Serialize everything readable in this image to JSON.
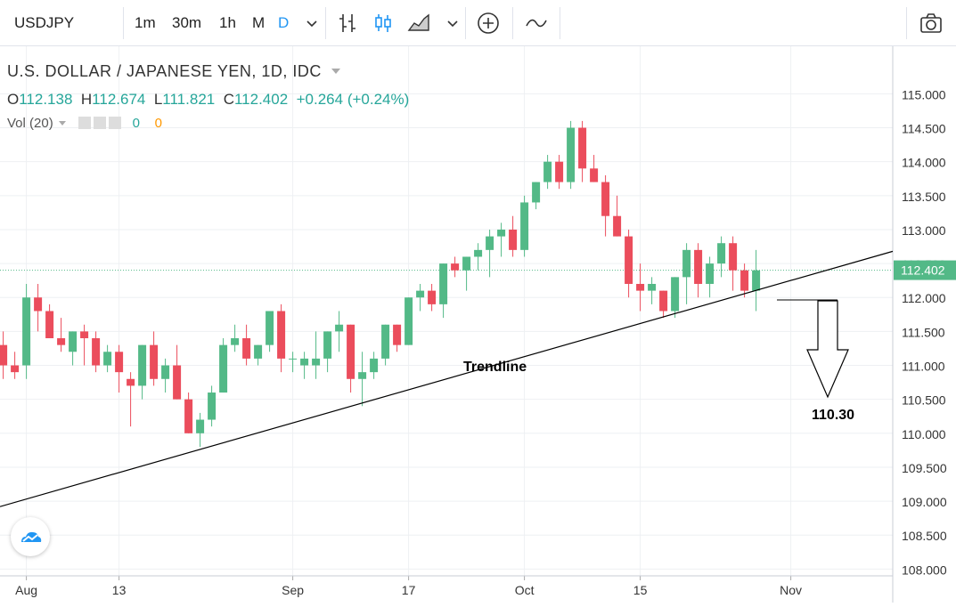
{
  "toolbar": {
    "symbol": "USDJPY",
    "timeframes": [
      "1m",
      "30m",
      "1h",
      "M",
      "D"
    ],
    "active_timeframe": "D"
  },
  "legend": {
    "title": "U.S. DOLLAR / JAPANESE YEN, 1D, IDC",
    "o_label": "O",
    "o_value": "112.138",
    "h_label": "H",
    "h_value": "112.674",
    "l_label": "L",
    "l_value": "111.821",
    "c_label": "C",
    "c_value": "112.402",
    "change": "+0.264 (+0.24%)",
    "vol_label": "Vol (20)",
    "vol_value1": "0",
    "vol_value2": "0"
  },
  "chart_data": {
    "type": "candlestick",
    "y_ticks": [
      "115.000",
      "114.500",
      "114.000",
      "113.500",
      "113.000",
      "112.500",
      "112.000",
      "111.500",
      "111.000",
      "110.500",
      "110.000",
      "109.500",
      "109.000",
      "108.500",
      "108.000"
    ],
    "x_ticks": [
      {
        "label": "Aug",
        "index": 2
      },
      {
        "label": "13",
        "index": 10
      },
      {
        "label": "Sep",
        "index": 25
      },
      {
        "label": "17",
        "index": 35
      },
      {
        "label": "Oct",
        "index": 45
      },
      {
        "label": "15",
        "index": 55
      },
      {
        "label": "Nov",
        "index": 68
      }
    ],
    "ylim": [
      107.9,
      115.7
    ],
    "last_price": 112.402,
    "last_price_label": "112.402",
    "up_color": "#53b987",
    "down_color": "#eb4d5c",
    "candles": [
      [
        111.3,
        111.5,
        110.8,
        111.0
      ],
      [
        111.0,
        111.2,
        110.8,
        110.9
      ],
      [
        111.0,
        112.2,
        110.8,
        112.0
      ],
      [
        112.0,
        112.2,
        111.5,
        111.8
      ],
      [
        111.8,
        111.9,
        111.4,
        111.4
      ],
      [
        111.4,
        111.7,
        111.2,
        111.3
      ],
      [
        111.2,
        111.5,
        111.0,
        111.5
      ],
      [
        111.5,
        111.6,
        111.0,
        111.4
      ],
      [
        111.4,
        111.5,
        110.9,
        111.0
      ],
      [
        111.0,
        111.3,
        110.9,
        111.2
      ],
      [
        111.2,
        111.3,
        110.6,
        110.9
      ],
      [
        110.8,
        110.9,
        110.1,
        110.7
      ],
      [
        110.7,
        111.3,
        110.5,
        111.3
      ],
      [
        111.3,
        111.5,
        110.7,
        110.8
      ],
      [
        110.8,
        111.1,
        110.6,
        111.0
      ],
      [
        111.0,
        111.3,
        110.5,
        110.5
      ],
      [
        110.5,
        110.6,
        110.0,
        110.0
      ],
      [
        110.0,
        110.3,
        109.8,
        110.2
      ],
      [
        110.2,
        110.7,
        110.1,
        110.6
      ],
      [
        110.6,
        111.4,
        110.6,
        111.3
      ],
      [
        111.3,
        111.6,
        111.2,
        111.4
      ],
      [
        111.4,
        111.6,
        111.0,
        111.1
      ],
      [
        111.1,
        111.3,
        111.0,
        111.3
      ],
      [
        111.3,
        111.8,
        111.2,
        111.8
      ],
      [
        111.8,
        111.9,
        110.9,
        111.1
      ],
      [
        111.1,
        111.2,
        110.9,
        111.1
      ],
      [
        111.0,
        111.2,
        110.8,
        111.1
      ],
      [
        111.0,
        111.5,
        110.8,
        111.1
      ],
      [
        111.1,
        111.5,
        110.9,
        111.5
      ],
      [
        111.5,
        111.8,
        111.2,
        111.6
      ],
      [
        111.6,
        111.6,
        110.6,
        110.8
      ],
      [
        110.8,
        111.2,
        110.4,
        110.9
      ],
      [
        110.9,
        111.2,
        110.8,
        111.1
      ],
      [
        111.1,
        111.6,
        111.0,
        111.6
      ],
      [
        111.6,
        111.6,
        111.2,
        111.3
      ],
      [
        111.3,
        112.0,
        111.3,
        112.0
      ],
      [
        112.0,
        112.2,
        111.8,
        112.1
      ],
      [
        112.1,
        112.2,
        111.8,
        111.9
      ],
      [
        111.9,
        112.5,
        111.7,
        112.5
      ],
      [
        112.5,
        112.6,
        112.3,
        112.4
      ],
      [
        112.4,
        112.6,
        112.1,
        112.6
      ],
      [
        112.6,
        112.8,
        112.4,
        112.7
      ],
      [
        112.7,
        113.0,
        112.3,
        112.9
      ],
      [
        112.9,
        113.1,
        112.6,
        113.0
      ],
      [
        113.0,
        113.2,
        112.6,
        112.7
      ],
      [
        112.7,
        113.5,
        112.6,
        113.4
      ],
      [
        113.4,
        113.7,
        113.3,
        113.7
      ],
      [
        113.7,
        114.1,
        113.6,
        114.0
      ],
      [
        114.0,
        114.1,
        113.6,
        113.7
      ],
      [
        113.7,
        114.6,
        113.6,
        114.5
      ],
      [
        114.5,
        114.6,
        113.7,
        113.9
      ],
      [
        113.9,
        114.1,
        113.7,
        113.7
      ],
      [
        113.7,
        113.8,
        112.9,
        113.2
      ],
      [
        113.2,
        113.5,
        112.9,
        112.9
      ],
      [
        112.9,
        113.0,
        112.0,
        112.2
      ],
      [
        112.2,
        112.5,
        111.8,
        112.1
      ],
      [
        112.1,
        112.3,
        111.9,
        112.2
      ],
      [
        112.1,
        112.1,
        111.7,
        111.8
      ],
      [
        111.8,
        112.3,
        111.7,
        112.3
      ],
      [
        112.3,
        112.8,
        111.9,
        112.7
      ],
      [
        112.7,
        112.8,
        112.0,
        112.2
      ],
      [
        112.2,
        112.6,
        112.0,
        112.5
      ],
      [
        112.5,
        112.9,
        112.3,
        112.8
      ],
      [
        112.8,
        112.9,
        112.1,
        112.4
      ],
      [
        112.4,
        112.5,
        112.0,
        112.1
      ],
      [
        112.1,
        112.7,
        111.8,
        112.4
      ]
    ],
    "annotations": [
      {
        "text": "Trendline"
      },
      {
        "text": "110.30"
      }
    ]
  }
}
